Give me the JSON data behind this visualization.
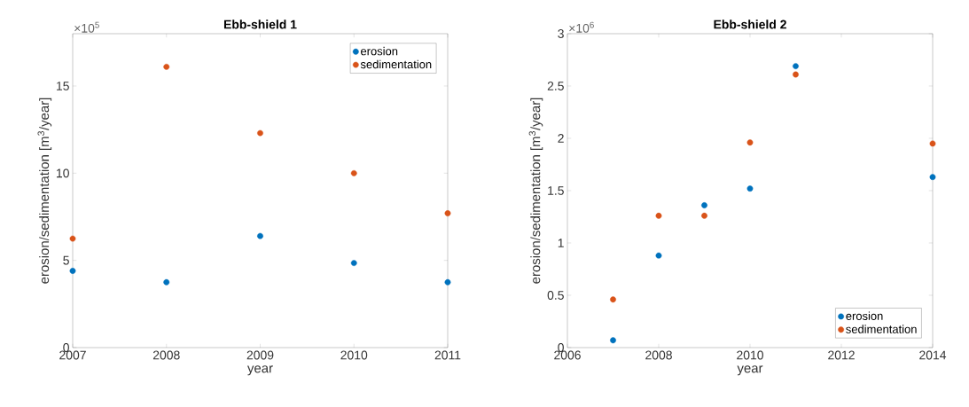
{
  "chart_data": [
    {
      "type": "scatter",
      "title": "Ebb-shield 1",
      "xlabel": "year",
      "ylabel": "erosion/sedimentation [m$^{3}$/year]",
      "annotations": [
        "×10$^{5}$"
      ],
      "x": [
        2007,
        2008,
        2009,
        2010,
        2011
      ],
      "series": [
        {
          "name": "erosion",
          "color": "#0072bd",
          "values": [
            4.4,
            3.75,
            6.4,
            4.85,
            3.75
          ]
        },
        {
          "name": "sedimentation",
          "color": "#d95319",
          "values": [
            6.25,
            16.1,
            12.3,
            10.0,
            7.7
          ]
        }
      ],
      "xlim": [
        2007,
        2011
      ],
      "ylim": [
        0,
        18
      ],
      "xticks": [
        2007,
        2008,
        2009,
        2010,
        2011
      ],
      "yticks": [
        0,
        5,
        10,
        15
      ],
      "grid": false,
      "legend": "top right",
      "marker": "circle"
    },
    {
      "type": "scatter",
      "title": "Ebb-shield 2",
      "xlabel": "year",
      "ylabel": "erosion/sedimentation [m$^{3}$/year]",
      "annotations": [
        "×10$^{6}$"
      ],
      "x": [
        2007,
        2008,
        2009,
        2010,
        2011,
        2014
      ],
      "series": [
        {
          "name": "erosion",
          "color": "#0072bd",
          "values": [
            0.07,
            0.88,
            1.36,
            1.52,
            2.69,
            1.63
          ]
        },
        {
          "name": "sedimentation",
          "color": "#d95319",
          "values": [
            0.46,
            1.26,
            1.26,
            1.96,
            2.61,
            1.95
          ]
        }
      ],
      "xlim": [
        2006,
        2014
      ],
      "ylim": [
        0,
        3
      ],
      "xticks": [
        2006,
        2008,
        2010,
        2012,
        2014
      ],
      "yticks": [
        0,
        0.5,
        1,
        1.5,
        2,
        2.5,
        3
      ],
      "grid": false,
      "legend": "bottom right",
      "marker": "circle"
    }
  ]
}
